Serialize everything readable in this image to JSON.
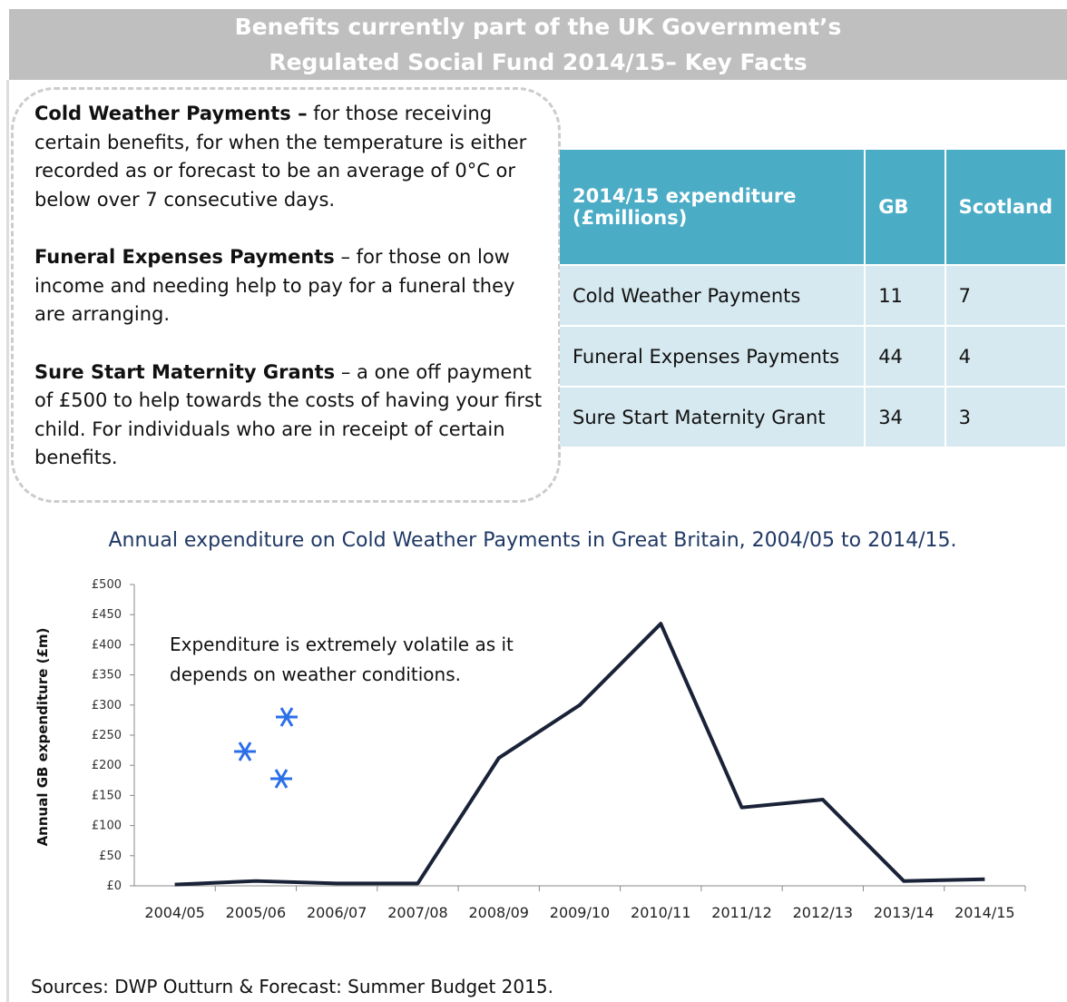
{
  "header": {
    "title_line1": "Benefits currently part of the UK Government’s",
    "title_line2": "Regulated Social Fund 2014/15– Key Facts"
  },
  "items": [
    {
      "title": "Cold Weather Payments –",
      "text": "for those receiving certain benefits, for when the temperature is either recorded as or forecast to be an average of 0°C or below over 7 consecutive days."
    },
    {
      "title": "Funeral Expenses Payments",
      "text": "– for those on low income and needing help to pay for a funeral they are arranging."
    },
    {
      "title": "Sure Start Maternity Grants",
      "text": "– a one off payment of £500 to help towards the costs of having your first child. For individuals who are in receipt of certain benefits."
    }
  ],
  "table": {
    "header": [
      "2014/15 expenditure (£millions)",
      "GB",
      "Scotland"
    ],
    "rows": [
      [
        "Cold Weather Payments",
        11,
        7
      ],
      [
        "Funeral Expenses Payments",
        44,
        4
      ],
      [
        "Sure Start Maternity Grant",
        34,
        3
      ]
    ]
  },
  "chart_data": {
    "type": "line",
    "title": "Annual expenditure on Cold Weather Payments in Great Britain, 2004/05 to 2014/15.",
    "y_label": "Annual GB expenditure (£m)",
    "annotation_line1": "Expenditure is extremely volatile as it",
    "annotation_line2": "depends on weather conditions.",
    "categories": [
      "2004/05",
      "2005/06",
      "2006/07",
      "2007/08",
      "2008/09",
      "2009/10",
      "2010/11",
      "2011/12",
      "2012/13",
      "2013/14",
      "2014/15"
    ],
    "series": [
      {
        "name": "Cold Weather Payments",
        "color": "#1a2238",
        "values": [
          2,
          8,
          4,
          4,
          212,
          300,
          435,
          130,
          143,
          8,
          11
        ]
      }
    ],
    "ylim": [
      0,
      500
    ],
    "yticks": [
      {
        "value": 0,
        "label": "£0"
      },
      {
        "value": 50,
        "label": "£50"
      },
      {
        "value": 100,
        "label": "£100"
      },
      {
        "value": 150,
        "label": "£150"
      },
      {
        "value": 200,
        "label": "£200"
      },
      {
        "value": 250,
        "label": "£250"
      },
      {
        "value": 300,
        "label": "£300"
      },
      {
        "value": 350,
        "label": "£350"
      },
      {
        "value": 400,
        "label": "£400"
      },
      {
        "value": 450,
        "label": "£450"
      },
      {
        "value": 500,
        "label": "£500"
      }
    ]
  },
  "source": "Sources: DWP Outturn & Forecast: Summer Budget 2015."
}
